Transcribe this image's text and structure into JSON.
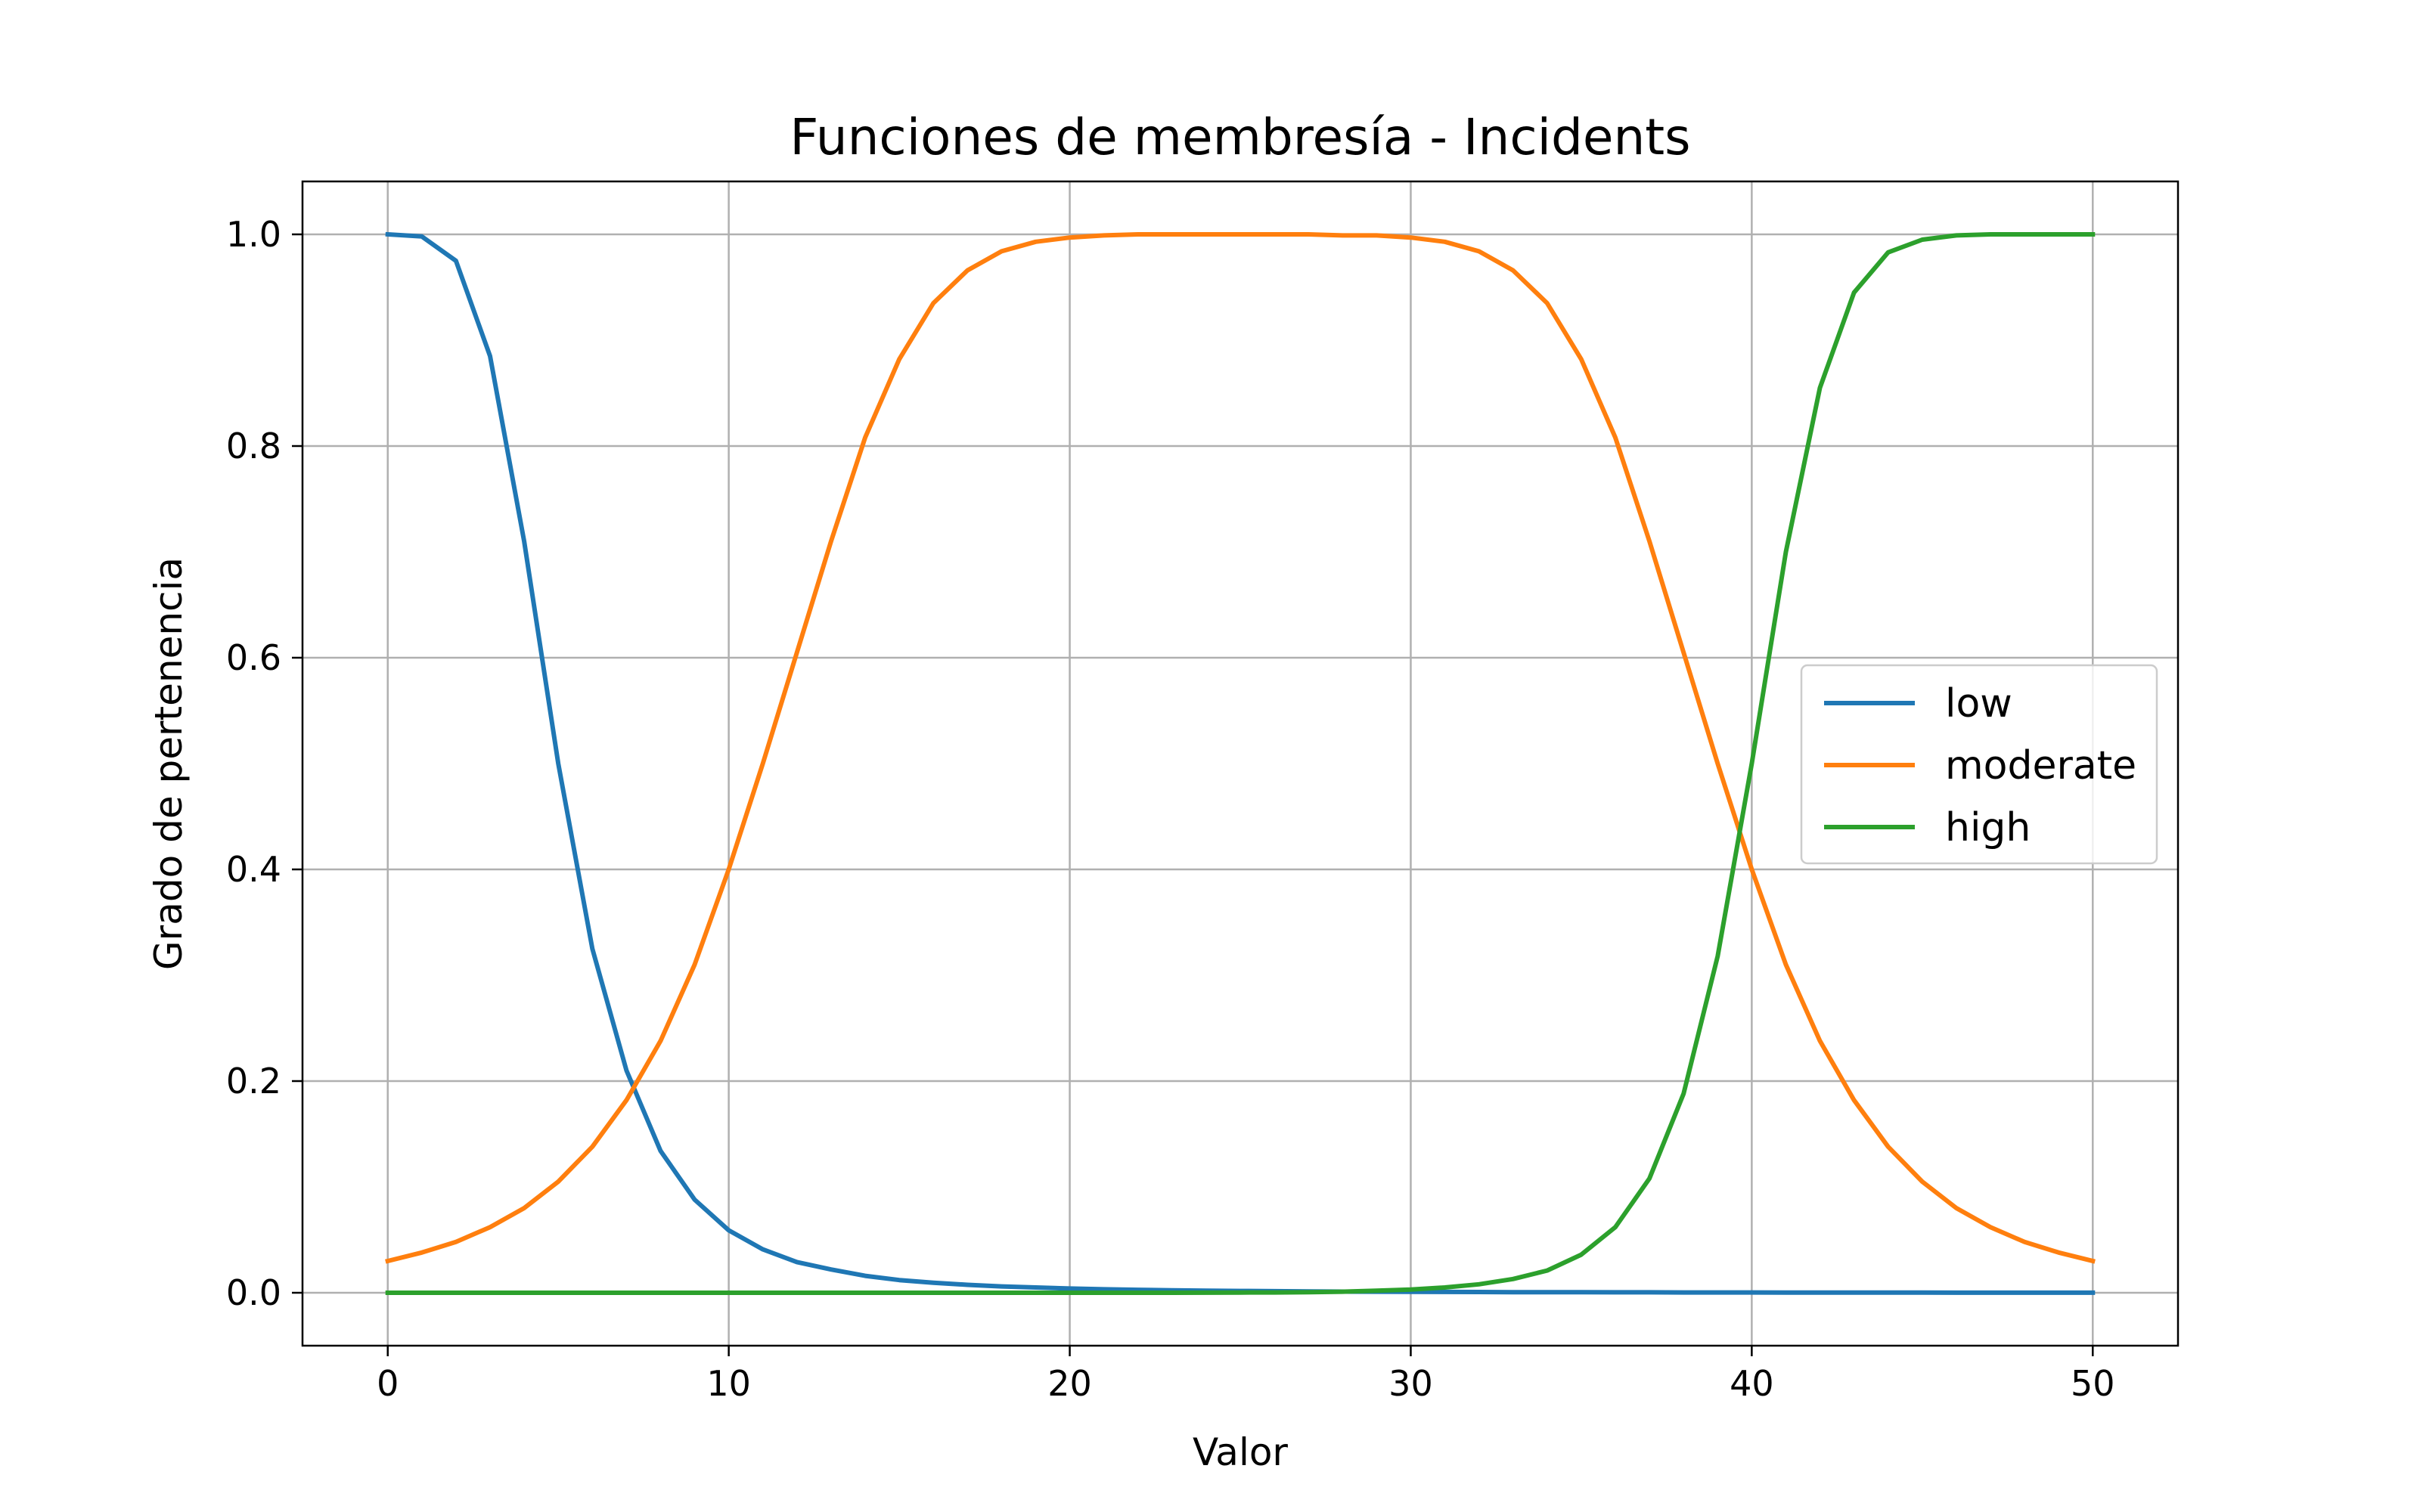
{
  "chart_data": {
    "type": "line",
    "title": "Funciones de membresía - Incidents",
    "xlabel": "Valor",
    "ylabel": "Grado de pertenencia",
    "xlim": [
      -2.5,
      52.5
    ],
    "ylim": [
      -0.05,
      1.05
    ],
    "xticks": [
      0,
      10,
      20,
      30,
      40,
      50
    ],
    "yticks": [
      0.0,
      0.2,
      0.4,
      0.6,
      0.8,
      1.0
    ],
    "xtick_labels": [
      "0",
      "10",
      "20",
      "30",
      "40",
      "50"
    ],
    "ytick_labels": [
      "0.0",
      "0.2",
      "0.4",
      "0.6",
      "0.8",
      "1.0"
    ],
    "grid": true,
    "legend_position": "center-right",
    "x": [
      0,
      1,
      2,
      3,
      4,
      5,
      6,
      7,
      8,
      9,
      10,
      11,
      12,
      13,
      14,
      15,
      16,
      17,
      18,
      19,
      20,
      21,
      22,
      23,
      24,
      25,
      26,
      27,
      28,
      29,
      30,
      31,
      32,
      33,
      34,
      35,
      36,
      37,
      38,
      39,
      40,
      41,
      42,
      43,
      44,
      45,
      46,
      47,
      48,
      49,
      50
    ],
    "series": [
      {
        "name": "low",
        "color": "#1f77b4",
        "values": [
          1.0,
          0.998,
          0.975,
          0.885,
          0.71,
          0.5,
          0.325,
          0.21,
          0.134,
          0.088,
          0.059,
          0.041,
          0.029,
          0.022,
          0.016,
          0.012,
          0.0095,
          0.0075,
          0.006,
          0.005,
          0.004,
          0.0033,
          0.0028,
          0.0023,
          0.002,
          0.0017,
          0.0015,
          0.0013,
          0.0011,
          0.001,
          0.0009,
          0.0008,
          0.0007,
          0.0006,
          0.0005,
          0.0005,
          0.0004,
          0.0004,
          0.0003,
          0.0003,
          0.0003,
          0.0002,
          0.0002,
          0.0002,
          0.0002,
          0.0002,
          0.0001,
          0.0001,
          0.0001,
          0.0001,
          0.0001
        ]
      },
      {
        "name": "moderate",
        "color": "#ff7f0e",
        "values": [
          0.03,
          0.038,
          0.048,
          0.062,
          0.08,
          0.105,
          0.138,
          0.182,
          0.238,
          0.31,
          0.4,
          0.5,
          0.605,
          0.71,
          0.808,
          0.882,
          0.935,
          0.966,
          0.984,
          0.993,
          0.997,
          0.999,
          1.0,
          1.0,
          1.0,
          1.0,
          1.0,
          1.0,
          0.999,
          0.999,
          0.997,
          0.993,
          0.984,
          0.966,
          0.935,
          0.882,
          0.808,
          0.71,
          0.605,
          0.5,
          0.4,
          0.31,
          0.238,
          0.182,
          0.138,
          0.105,
          0.08,
          0.062,
          0.048,
          0.038,
          0.03
        ]
      },
      {
        "name": "high",
        "color": "#2ca02c",
        "values": [
          0,
          0,
          0,
          0,
          0,
          0,
          0,
          0,
          0,
          0,
          0,
          0,
          0,
          0,
          0,
          0,
          0,
          0,
          0,
          0,
          0,
          0,
          0,
          0,
          0.0001,
          0.0002,
          0.0003,
          0.0006,
          0.001,
          0.002,
          0.003,
          0.005,
          0.008,
          0.013,
          0.021,
          0.036,
          0.062,
          0.108,
          0.188,
          0.318,
          0.5,
          0.7,
          0.855,
          0.945,
          0.983,
          0.995,
          0.999,
          1.0,
          1.0,
          1.0,
          1.0
        ]
      }
    ]
  }
}
